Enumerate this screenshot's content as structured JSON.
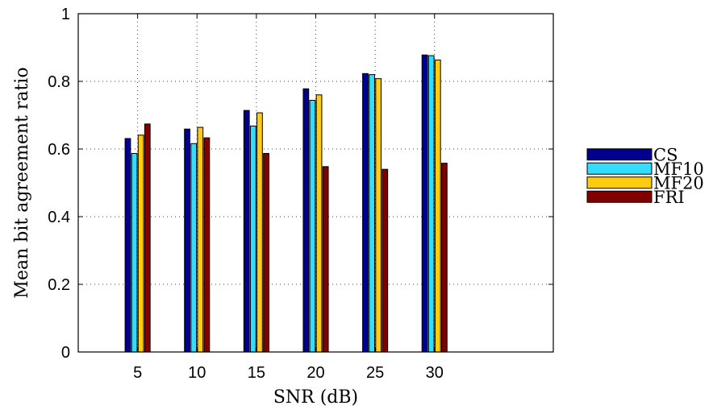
{
  "chart_data": {
    "type": "bar",
    "title": "",
    "xlabel": "SNR (dB)",
    "ylabel": "Mean bit agreement ratio",
    "categories": [
      "5",
      "10",
      "15",
      "20",
      "25",
      "30"
    ],
    "x_range": [
      0,
      40
    ],
    "x_ticks": [
      5,
      10,
      15,
      20,
      25,
      30
    ],
    "ylim": [
      0,
      1
    ],
    "y_ticks": [
      0,
      0.2,
      0.4,
      0.6,
      0.8,
      1
    ],
    "y_tick_labels": [
      "0",
      "0.2",
      "0.4",
      "0.6",
      "0.8",
      "1"
    ],
    "grid": true,
    "legend_position": "outside-right",
    "series": [
      {
        "name": "CS",
        "color": "#00008f",
        "values": [
          0.631,
          0.659,
          0.714,
          0.778,
          0.823,
          0.878
        ]
      },
      {
        "name": "MF10",
        "color": "#33ddff",
        "values": [
          0.587,
          0.616,
          0.668,
          0.744,
          0.82,
          0.876
        ]
      },
      {
        "name": "MF20",
        "color": "#ffcc11",
        "values": [
          0.641,
          0.664,
          0.707,
          0.76,
          0.808,
          0.863
        ]
      },
      {
        "name": "FRI",
        "color": "#800000",
        "values": [
          0.674,
          0.633,
          0.587,
          0.548,
          0.54,
          0.558
        ]
      }
    ]
  }
}
